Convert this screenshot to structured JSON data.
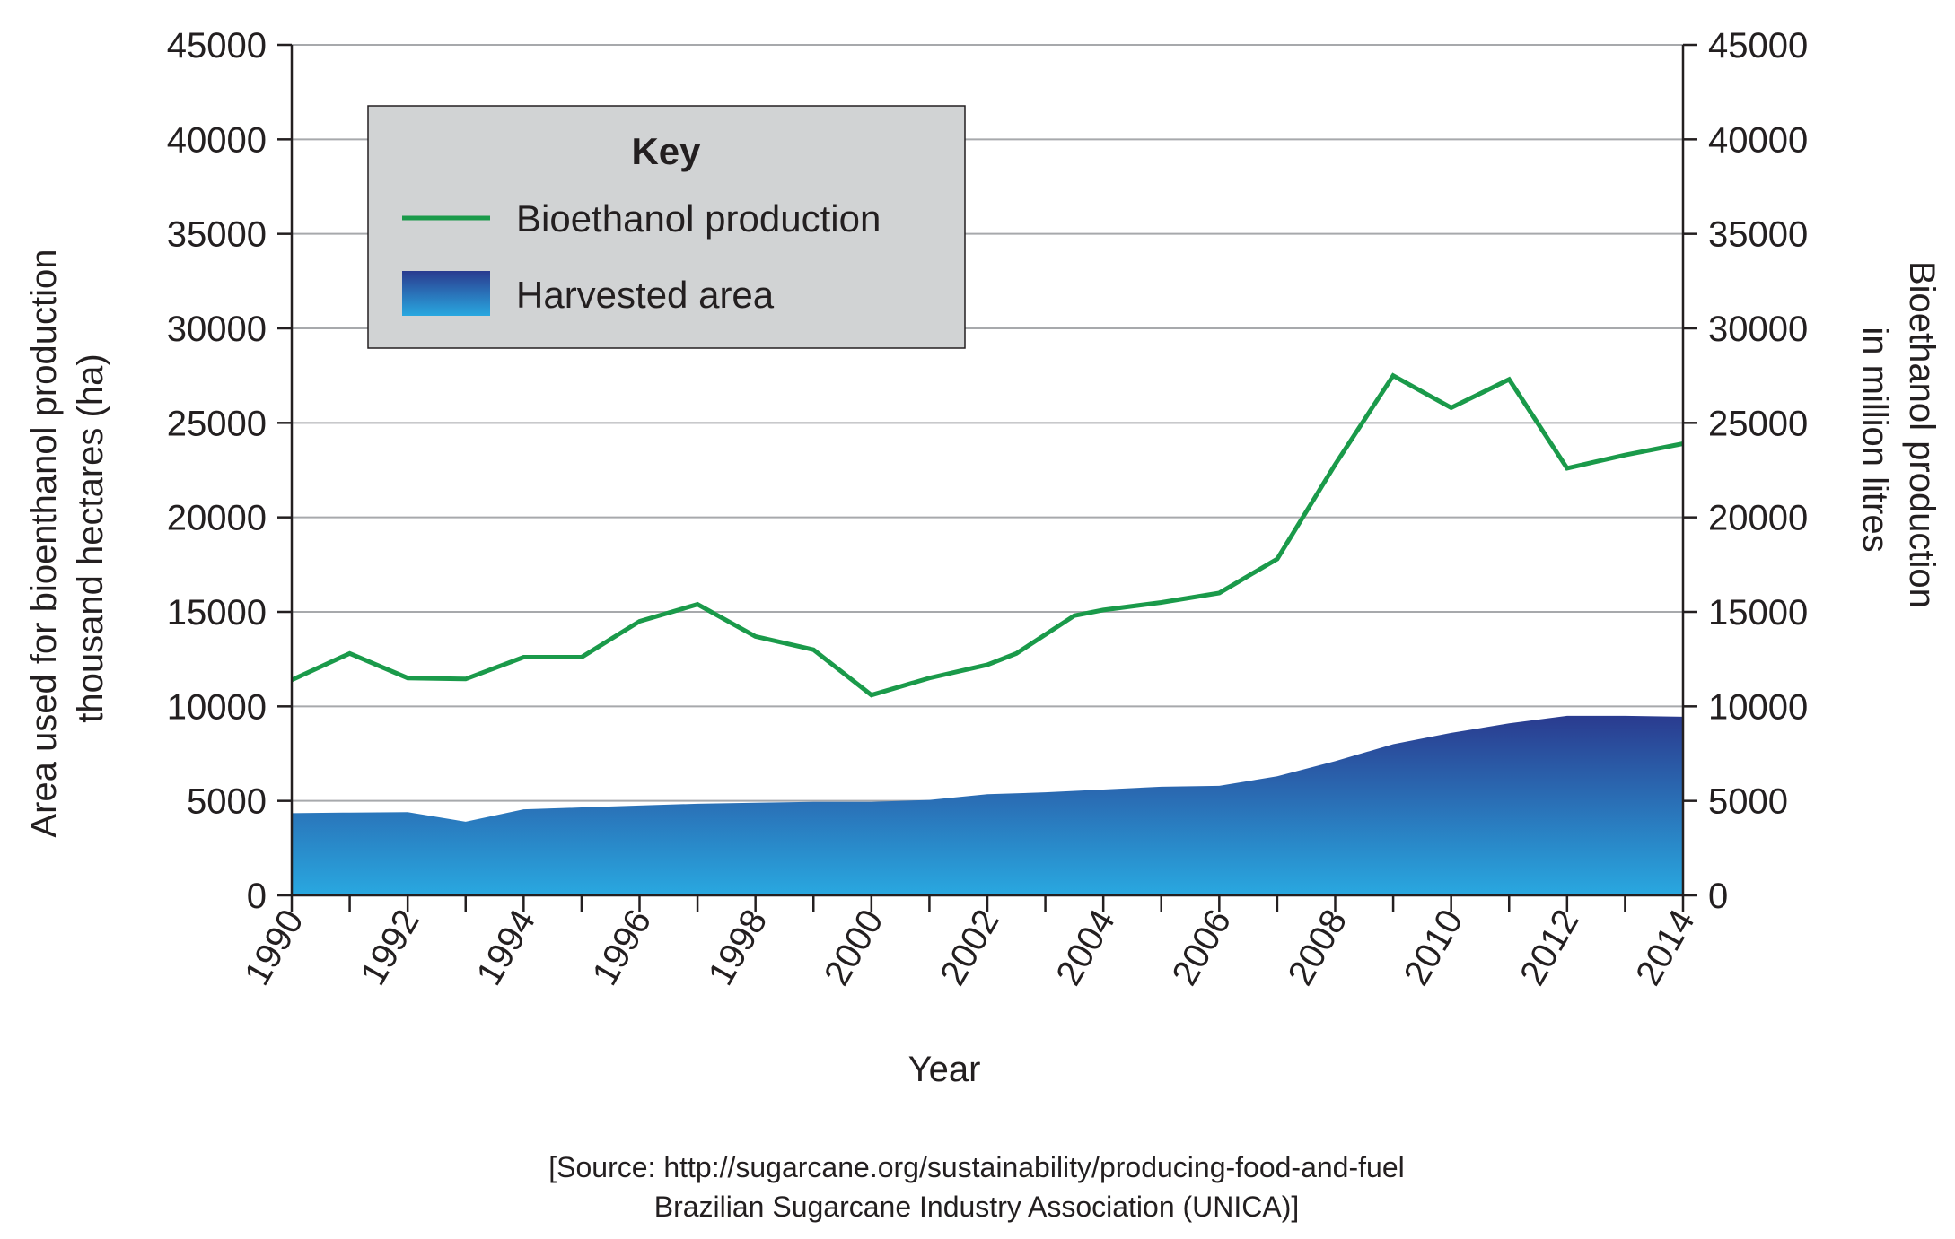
{
  "chart_data": {
    "type": "line+area",
    "title": "",
    "xlabel": "Year",
    "ylabel_left": "Area used for bioenthanol production thousand hectares (ha)",
    "ylabel_left_lines": [
      "Area used for bioenthanol production",
      "thousand hectares (ha)"
    ],
    "ylabel_right": "Bioethanol production in million litres",
    "ylabel_right_lines": [
      "Bioethanol production",
      "in million litres"
    ],
    "xlim": [
      1990,
      2014
    ],
    "ylim": [
      0,
      45000
    ],
    "x_ticks": [
      "1990",
      "1992",
      "1994",
      "1996",
      "1998",
      "2000",
      "2002",
      "2004",
      "2006",
      "2008",
      "2010",
      "2012",
      "2014"
    ],
    "y_ticks": [
      "0",
      "5000",
      "10000",
      "15000",
      "20000",
      "25000",
      "30000",
      "35000",
      "40000",
      "45000"
    ],
    "y_tick_values": [
      0,
      5000,
      10000,
      15000,
      20000,
      25000,
      30000,
      35000,
      40000,
      45000
    ],
    "grid": "horizontal",
    "series": [
      {
        "name": "Bioethanol production",
        "kind": "line",
        "axis": "right",
        "color": "#1a9a4a",
        "x": [
          1990,
          1991,
          1992,
          1993,
          1994,
          1995,
          1996,
          1997,
          1998,
          1999,
          2000,
          2001,
          2002,
          2002.5,
          2003.5,
          2004,
          2005,
          2006,
          2007,
          2008,
          2009,
          2010,
          2011,
          2012,
          2013,
          2014
        ],
        "y": [
          11400,
          12800,
          11500,
          11450,
          12600,
          12600,
          14500,
          15400,
          13700,
          13000,
          10600,
          11500,
          12200,
          12800,
          14800,
          15100,
          15500,
          16000,
          17800,
          22800,
          27500,
          25800,
          27300,
          22600,
          23300,
          23900
        ]
      },
      {
        "name": "Harvested area",
        "kind": "area",
        "axis": "left",
        "color_top": "#2a3b8f",
        "color_bottom": "#29a8e0",
        "x": [
          1990,
          1991,
          1992,
          1993,
          1994,
          1995,
          1996,
          1997,
          1998,
          1999,
          2000,
          2001,
          2002,
          2003,
          2004,
          2005,
          2006,
          2007,
          2008,
          2009,
          2010,
          2011,
          2012,
          2013,
          2014
        ],
        "y": [
          4350,
          4380,
          4400,
          3900,
          4550,
          4650,
          4750,
          4850,
          4900,
          4950,
          4950,
          5050,
          5350,
          5450,
          5600,
          5750,
          5800,
          6300,
          7100,
          8000,
          8600,
          9100,
          9500,
          9500,
          9450
        ]
      }
    ],
    "legend": {
      "title": "Key",
      "position": "top-left",
      "items": [
        "Bioethanol production",
        "Harvested area"
      ]
    }
  },
  "source": {
    "line1": "[Source: http://sugarcane.org/sustainability/producing-food-and-fuel",
    "line2": "Brazilian Sugarcane Industry Association (UNICA)]"
  }
}
